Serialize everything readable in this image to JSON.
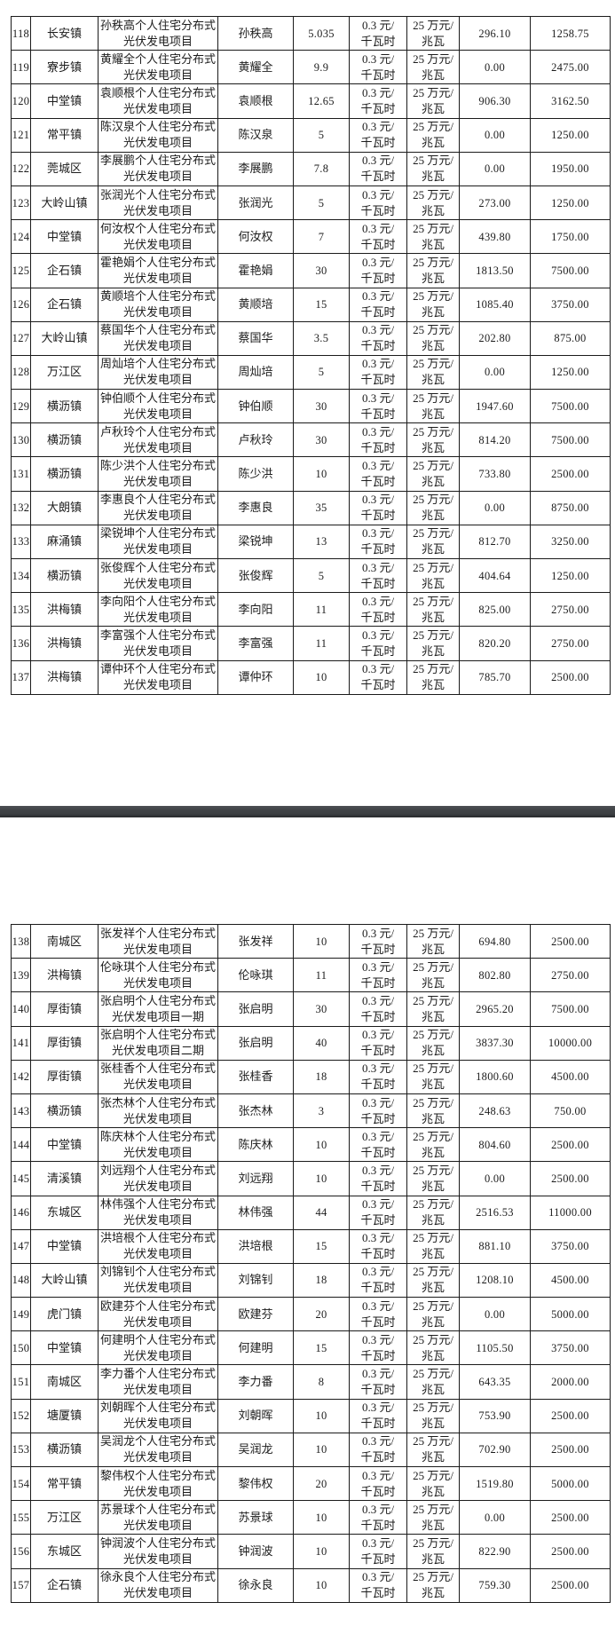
{
  "colors": {
    "page_background": "#ffffff",
    "table_border": "#1b1b1b",
    "text": "#1c1c1c",
    "page_separator": "#3d4043"
  },
  "common": {
    "price_line1": "0.3 元/",
    "price_line2": "千瓦时",
    "subsidy_line1": "25 万元/",
    "subsidy_line2": "兆瓦"
  },
  "pages": [
    {
      "rows": [
        [
          "118",
          "长安镇",
          "孙秩高个人住宅分布式",
          "光伏发电项目",
          "孙秩高",
          "5.035",
          "296.10",
          "1258.75"
        ],
        [
          "119",
          "寮步镇",
          "黄耀全个人住宅分布式",
          "光伏发电项目",
          "黄耀全",
          "9.9",
          "0.00",
          "2475.00"
        ],
        [
          "120",
          "中堂镇",
          "袁顺根个人住宅分布式",
          "光伏发电项目",
          "袁顺根",
          "12.65",
          "906.30",
          "3162.50"
        ],
        [
          "121",
          "常平镇",
          "陈汉泉个人住宅分布式",
          "光伏发电项目",
          "陈汉泉",
          "5",
          "0.00",
          "1250.00"
        ],
        [
          "122",
          "莞城区",
          "李展鹏个人住宅分布式",
          "光伏发电项目",
          "李展鹏",
          "7.8",
          "0.00",
          "1950.00"
        ],
        [
          "123",
          "大岭山镇",
          "张润光个人住宅分布式",
          "光伏发电项目",
          "张润光",
          "5",
          "273.00",
          "1250.00"
        ],
        [
          "124",
          "中堂镇",
          "何汝权个人住宅分布式",
          "光伏发电项目",
          "何汝权",
          "7",
          "439.80",
          "1750.00"
        ],
        [
          "125",
          "企石镇",
          "霍艳娟个人住宅分布式",
          "光伏发电项目",
          "霍艳娟",
          "30",
          "1813.50",
          "7500.00"
        ],
        [
          "126",
          "企石镇",
          "黄顺培个人住宅分布式",
          "光伏发电项目",
          "黄顺培",
          "15",
          "1085.40",
          "3750.00"
        ],
        [
          "127",
          "大岭山镇",
          "蔡国华个人住宅分布式",
          "光伏发电项目",
          "蔡国华",
          "3.5",
          "202.80",
          "875.00"
        ],
        [
          "128",
          "万江区",
          "周灿培个人住宅分布式",
          "光伏发电项目",
          "周灿培",
          "5",
          "0.00",
          "1250.00"
        ],
        [
          "129",
          "横沥镇",
          "钟伯顺个人住宅分布式",
          "光伏发电项目",
          "钟伯顺",
          "30",
          "1947.60",
          "7500.00"
        ],
        [
          "130",
          "横沥镇",
          "卢秋玲个人住宅分布式",
          "光伏发电项目",
          "卢秋玲",
          "30",
          "814.20",
          "7500.00"
        ],
        [
          "131",
          "横沥镇",
          "陈少洪个人住宅分布式",
          "光伏发电项目",
          "陈少洪",
          "10",
          "733.80",
          "2500.00"
        ],
        [
          "132",
          "大朗镇",
          "李惠良个人住宅分布式",
          "光伏发电项目",
          "李惠良",
          "35",
          "0.00",
          "8750.00"
        ],
        [
          "133",
          "麻涌镇",
          "梁锐坤个人住宅分布式",
          "光伏发电项目",
          "梁锐坤",
          "13",
          "812.70",
          "3250.00"
        ],
        [
          "134",
          "横沥镇",
          "张俊辉个人住宅分布式",
          "光伏发电项目",
          "张俊辉",
          "5",
          "404.64",
          "1250.00"
        ],
        [
          "135",
          "洪梅镇",
          "李向阳个人住宅分布式",
          "光伏发电项目",
          "李向阳",
          "11",
          "825.00",
          "2750.00"
        ],
        [
          "136",
          "洪梅镇",
          "李富强个人住宅分布式",
          "光伏发电项目",
          "李富强",
          "11",
          "820.20",
          "2750.00"
        ],
        [
          "137",
          "洪梅镇",
          "谭仲环个人住宅分布式",
          "光伏发电项目",
          "谭仲环",
          "10",
          "785.70",
          "2500.00"
        ]
      ]
    },
    {
      "rows": [
        [
          "138",
          "南城区",
          "张发祥个人住宅分布式",
          "光伏发电项目",
          "张发祥",
          "10",
          "694.80",
          "2500.00"
        ],
        [
          "139",
          "洪梅镇",
          "伦咏琪个人住宅分布式",
          "光伏发电项目",
          "伦咏琪",
          "11",
          "802.80",
          "2750.00"
        ],
        [
          "140",
          "厚街镇",
          "张启明个人住宅分布式",
          "光伏发电项目一期",
          "张启明",
          "30",
          "2965.20",
          "7500.00"
        ],
        [
          "141",
          "厚街镇",
          "张启明个人住宅分布式",
          "光伏发电项目二期",
          "张启明",
          "40",
          "3837.30",
          "10000.00"
        ],
        [
          "142",
          "厚街镇",
          "张桂香个人住宅分布式",
          "光伏发电项目",
          "张桂香",
          "18",
          "1800.60",
          "4500.00"
        ],
        [
          "143",
          "横沥镇",
          "张杰林个人住宅分布式",
          "光伏发电项目",
          "张杰林",
          "3",
          "248.63",
          "750.00"
        ],
        [
          "144",
          "中堂镇",
          "陈庆林个人住宅分布式",
          "光伏发电项目",
          "陈庆林",
          "10",
          "804.60",
          "2500.00"
        ],
        [
          "145",
          "清溪镇",
          "刘远翔个人住宅分布式",
          "光伏发电项目",
          "刘远翔",
          "10",
          "0.00",
          "2500.00"
        ],
        [
          "146",
          "东城区",
          "林伟强个人住宅分布式",
          "光伏发电项目",
          "林伟强",
          "44",
          "2516.53",
          "11000.00"
        ],
        [
          "147",
          "中堂镇",
          "洪培根个人住宅分布式",
          "光伏发电项目",
          "洪培根",
          "15",
          "881.10",
          "3750.00"
        ],
        [
          "148",
          "大岭山镇",
          "刘锦钊个人住宅分布式",
          "光伏发电项目",
          "刘锦钊",
          "18",
          "1208.10",
          "4500.00"
        ],
        [
          "149",
          "虎门镇",
          "欧建芬个人住宅分布式",
          "光伏发电项目",
          "欧建芬",
          "20",
          "0.00",
          "5000.00"
        ],
        [
          "150",
          "中堂镇",
          "何建明个人住宅分布式",
          "光伏发电项目",
          "何建明",
          "15",
          "1105.50",
          "3750.00"
        ],
        [
          "151",
          "南城区",
          "李力番个人住宅分布式",
          "光伏发电项目",
          "李力番",
          "8",
          "643.35",
          "2000.00"
        ],
        [
          "152",
          "塘厦镇",
          "刘朝晖个人住宅分布式",
          "光伏发电项目",
          "刘朝晖",
          "10",
          "753.90",
          "2500.00"
        ],
        [
          "153",
          "横沥镇",
          "吴润龙个人住宅分布式",
          "光伏发电项目",
          "吴润龙",
          "10",
          "702.90",
          "2500.00"
        ],
        [
          "154",
          "常平镇",
          "黎伟权个人住宅分布式",
          "光伏发电项目",
          "黎伟权",
          "20",
          "1519.80",
          "5000.00"
        ],
        [
          "155",
          "万江区",
          "苏景球个人住宅分布式",
          "光伏发电项目",
          "苏景球",
          "10",
          "0.00",
          "2500.00"
        ],
        [
          "156",
          "东城区",
          "钟润波个人住宅分布式",
          "光伏发电项目",
          "钟润波",
          "10",
          "822.90",
          "2500.00"
        ],
        [
          "157",
          "企石镇",
          "徐永良个人住宅分布式",
          "光伏发电项目",
          "徐永良",
          "10",
          "759.30",
          "2500.00"
        ]
      ]
    }
  ]
}
